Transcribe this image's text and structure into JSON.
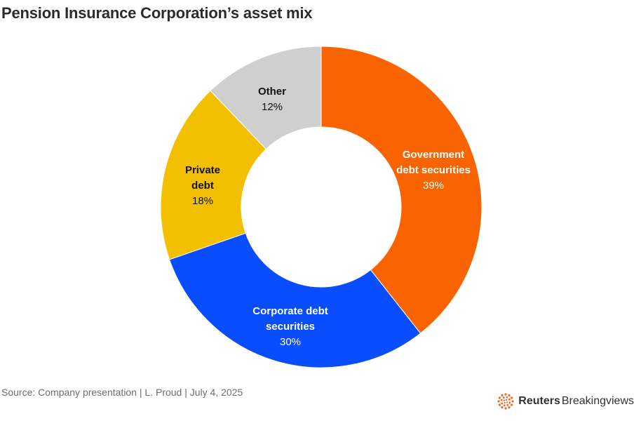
{
  "title": "Pension Insurance Corporation’s asset mix",
  "source": "Source: Company presentation | L. Proud | July 4, 2025",
  "logo": {
    "bold": "Reuters",
    "regular": "Breakingviews",
    "accent_color": "#f26722"
  },
  "chart_data": {
    "type": "pie",
    "variant": "donut",
    "start": "12 o'clock",
    "direction": "clockwise",
    "slices": [
      {
        "label_lines": [
          "Government",
          "debt securities"
        ],
        "value": 39,
        "value_label": "39%",
        "color": "#fa6400",
        "label_color": "#ffffff",
        "value_color": "#ffffff"
      },
      {
        "label_lines": [
          "Corporate debt",
          "securities"
        ],
        "value": 30,
        "value_label": "30%",
        "color": "#0a4dff",
        "label_color": "#ffffff",
        "value_color": "#ffffff"
      },
      {
        "label_lines": [
          "Private",
          "debt"
        ],
        "value": 18,
        "value_label": "18%",
        "color": "#f2c000",
        "label_color": "#111111",
        "value_color": "#111111"
      },
      {
        "label_lines": [
          "Other"
        ],
        "value": 12,
        "value_label": "12%",
        "color": "#cfcfcf",
        "label_color": "#111111",
        "value_color": "#111111"
      }
    ]
  }
}
